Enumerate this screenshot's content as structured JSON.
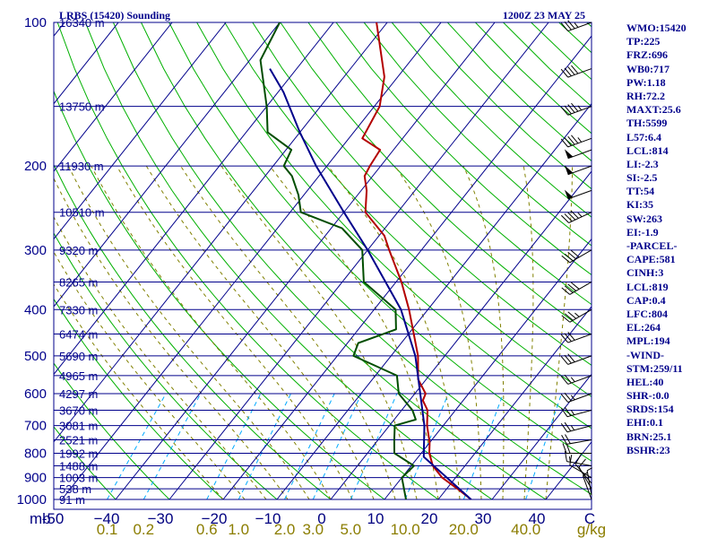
{
  "chart_data": {
    "type": "line",
    "title": "LRBS (15420) Sounding",
    "subtitle": "1200Z 23 MAY 25",
    "pressure_unit": "mb",
    "mixing_ratio_unit": "g/kg",
    "pressure_levels": [
      1000,
      900,
      800,
      700,
      600,
      500,
      400,
      300,
      200,
      100
    ],
    "temperature_ticks": [
      -50,
      -40,
      -30,
      -20,
      -10,
      0,
      10,
      20,
      30,
      40
    ],
    "temperature_tick_labels": [
      "-50",
      "−40",
      "−30",
      "−20",
      "−10",
      "0",
      "10",
      "20",
      "30",
      "40"
    ],
    "temperature_end_label": "C",
    "mixing_ratio_ticks": [
      0.1,
      0.2,
      0.6,
      1.0,
      2.0,
      3.0,
      5.0,
      10.0,
      20.0,
      40.0
    ],
    "mixing_ratio_tick_labels": [
      "0.1",
      "0.2",
      "0.6",
      "1.0",
      "2.0",
      "3.0",
      "5.0",
      "10.0",
      "20.0",
      "40.0"
    ],
    "heights": [
      {
        "p": 100,
        "label": "16340 m"
      },
      {
        "p": 150,
        "label": "13750 m"
      },
      {
        "p": 200,
        "label": "11930 m"
      },
      {
        "p": 250,
        "label": "10510 m"
      },
      {
        "p": 300,
        "label": "9320 m"
      },
      {
        "p": 350,
        "label": "8265 m"
      },
      {
        "p": 400,
        "label": "7330 m"
      },
      {
        "p": 450,
        "label": "6474 m"
      },
      {
        "p": 500,
        "label": "5690 m"
      },
      {
        "p": 550,
        "label": "4965 m"
      },
      {
        "p": 600,
        "label": "4297 m"
      },
      {
        "p": 650,
        "label": "3670 m"
      },
      {
        "p": 700,
        "label": "3081 m"
      },
      {
        "p": 750,
        "label": "2521 m"
      },
      {
        "p": 800,
        "label": "1992 m"
      },
      {
        "p": 850,
        "label": "1488 m"
      },
      {
        "p": 900,
        "label": "1003 m"
      },
      {
        "p": 950,
        "label": "538 m"
      },
      {
        "p": 1000,
        "label": "91 m"
      }
    ],
    "series": [
      {
        "role": "temperature",
        "color": "#b30000",
        "points": [
          {
            "p": 1000,
            "t": 26.1
          },
          {
            "p": 950,
            "t": 22.0
          },
          {
            "p": 900,
            "t": 17.5
          },
          {
            "p": 850,
            "t": 14.0
          },
          {
            "p": 800,
            "t": 11.5
          },
          {
            "p": 760,
            "t": 10.0
          },
          {
            "p": 700,
            "t": 7.0
          },
          {
            "p": 650,
            "t": 4.8
          },
          {
            "p": 620,
            "t": 2.5
          },
          {
            "p": 600,
            "t": 2.0
          },
          {
            "p": 560,
            "t": -1.5
          },
          {
            "p": 500,
            "t": -5.0
          },
          {
            "p": 450,
            "t": -9.0
          },
          {
            "p": 400,
            "t": -13.5
          },
          {
            "p": 350,
            "t": -19.0
          },
          {
            "p": 300,
            "t": -26.0
          },
          {
            "p": 280,
            "t": -29.0
          },
          {
            "p": 250,
            "t": -36.0
          },
          {
            "p": 225,
            "t": -39.0
          },
          {
            "p": 210,
            "t": -41.5
          },
          {
            "p": 200,
            "t": -42.0
          },
          {
            "p": 185,
            "t": -42.5
          },
          {
            "p": 175,
            "t": -47.5
          },
          {
            "p": 150,
            "t": -49.0
          },
          {
            "p": 130,
            "t": -52.5
          },
          {
            "p": 100,
            "t": -62.0
          }
        ]
      },
      {
        "role": "dewpoint",
        "color": "#004d00",
        "points": [
          {
            "p": 1000,
            "t": 14.0
          },
          {
            "p": 900,
            "t": 10.0
          },
          {
            "p": 850,
            "t": 10.5
          },
          {
            "p": 800,
            "t": 5.0
          },
          {
            "p": 750,
            "t": 3.0
          },
          {
            "p": 700,
            "t": 1.0
          },
          {
            "p": 680,
            "t": 4.0
          },
          {
            "p": 650,
            "t": 2.0
          },
          {
            "p": 600,
            "t": -3.0
          },
          {
            "p": 550,
            "t": -6.0
          },
          {
            "p": 500,
            "t": -17.0
          },
          {
            "p": 470,
            "t": -18.0
          },
          {
            "p": 440,
            "t": -13.0
          },
          {
            "p": 400,
            "t": -16.0
          },
          {
            "p": 350,
            "t": -26.0
          },
          {
            "p": 300,
            "t": -31.0
          },
          {
            "p": 270,
            "t": -38.0
          },
          {
            "p": 250,
            "t": -48.0
          },
          {
            "p": 230,
            "t": -51.0
          },
          {
            "p": 210,
            "t": -55.0
          },
          {
            "p": 200,
            "t": -58.0
          },
          {
            "p": 185,
            "t": -59.0
          },
          {
            "p": 170,
            "t": -66.0
          },
          {
            "p": 150,
            "t": -70.0
          },
          {
            "p": 120,
            "t": -78.0
          },
          {
            "p": 100,
            "t": -80.0
          }
        ]
      },
      {
        "role": "parcel",
        "color": "#00008b",
        "points": [
          {
            "p": 1000,
            "t": 26.1
          },
          {
            "p": 814,
            "t": 11.0
          },
          {
            "p": 700,
            "t": 6.5
          },
          {
            "p": 600,
            "t": 1.0
          },
          {
            "p": 500,
            "t": -5.5
          },
          {
            "p": 400,
            "t": -15.0
          },
          {
            "p": 300,
            "t": -30.0
          },
          {
            "p": 250,
            "t": -40.0
          },
          {
            "p": 200,
            "t": -52.0
          },
          {
            "p": 170,
            "t": -60.0
          },
          {
            "p": 140,
            "t": -69.0
          },
          {
            "p": 125,
            "t": -75.0
          }
        ]
      }
    ],
    "wind_barbs": [
      {
        "p": 1000,
        "dir": 340,
        "kt": 5
      },
      {
        "p": 980,
        "dir": 350,
        "kt": 5
      },
      {
        "p": 950,
        "dir": 330,
        "kt": 10
      },
      {
        "p": 925,
        "dir": 320,
        "kt": 10
      },
      {
        "p": 900,
        "dir": 300,
        "kt": 10
      },
      {
        "p": 850,
        "dir": 280,
        "kt": 15
      },
      {
        "p": 800,
        "dir": 270,
        "kt": 20
      },
      {
        "p": 750,
        "dir": 260,
        "kt": 20
      },
      {
        "p": 700,
        "dir": 255,
        "kt": 25
      },
      {
        "p": 650,
        "dir": 255,
        "kt": 25
      },
      {
        "p": 600,
        "dir": 250,
        "kt": 25
      },
      {
        "p": 550,
        "dir": 250,
        "kt": 25
      },
      {
        "p": 500,
        "dir": 250,
        "kt": 30
      },
      {
        "p": 450,
        "dir": 250,
        "kt": 30
      },
      {
        "p": 400,
        "dir": 240,
        "kt": 35
      },
      {
        "p": 350,
        "dir": 240,
        "kt": 40
      },
      {
        "p": 300,
        "dir": 240,
        "kt": 40
      },
      {
        "p": 250,
        "dir": 245,
        "kt": 45
      },
      {
        "p": 225,
        "dir": 250,
        "kt": 50
      },
      {
        "p": 200,
        "dir": 250,
        "kt": 50
      },
      {
        "p": 185,
        "dir": 250,
        "kt": 50
      },
      {
        "p": 175,
        "dir": 250,
        "kt": 45
      },
      {
        "p": 150,
        "dir": 250,
        "kt": 45
      },
      {
        "p": 125,
        "dir": 250,
        "kt": 40
      },
      {
        "p": 100,
        "dir": 250,
        "kt": 35
      }
    ],
    "indices": [
      "WMO:15420",
      "TP:225",
      "FRZ:696",
      "WB0:717",
      "PW:1.18",
      "RH:72.2",
      "MAXT:25.6",
      "TH:5599",
      "L57:6.4",
      "LCL:814",
      "LI:-2.3",
      "SI:-2.5",
      "TT:54",
      "KI:35",
      "SW:263",
      "EI:-1.9",
      "-PARCEL-",
      "CAPE:581",
      "CINH:3",
      "LCL:819",
      "CAP:0.4",
      "LFC:804",
      "EL:264",
      "MPL:194",
      "-WIND-",
      "STM:259/11",
      "HEL:40",
      "SHR-:0.0",
      "SRDS:154",
      "EHI:0.1",
      "BRN:25.1",
      "BSHR:23"
    ]
  },
  "colors": {
    "frame": "#00008b",
    "isobar": "#00008b",
    "isotherm": "#00008b",
    "dry_adiabat": "#00b000",
    "moist_adiabat": "#808000",
    "mixing_ratio": "#00aaff",
    "wind_barb": "#000000"
  }
}
